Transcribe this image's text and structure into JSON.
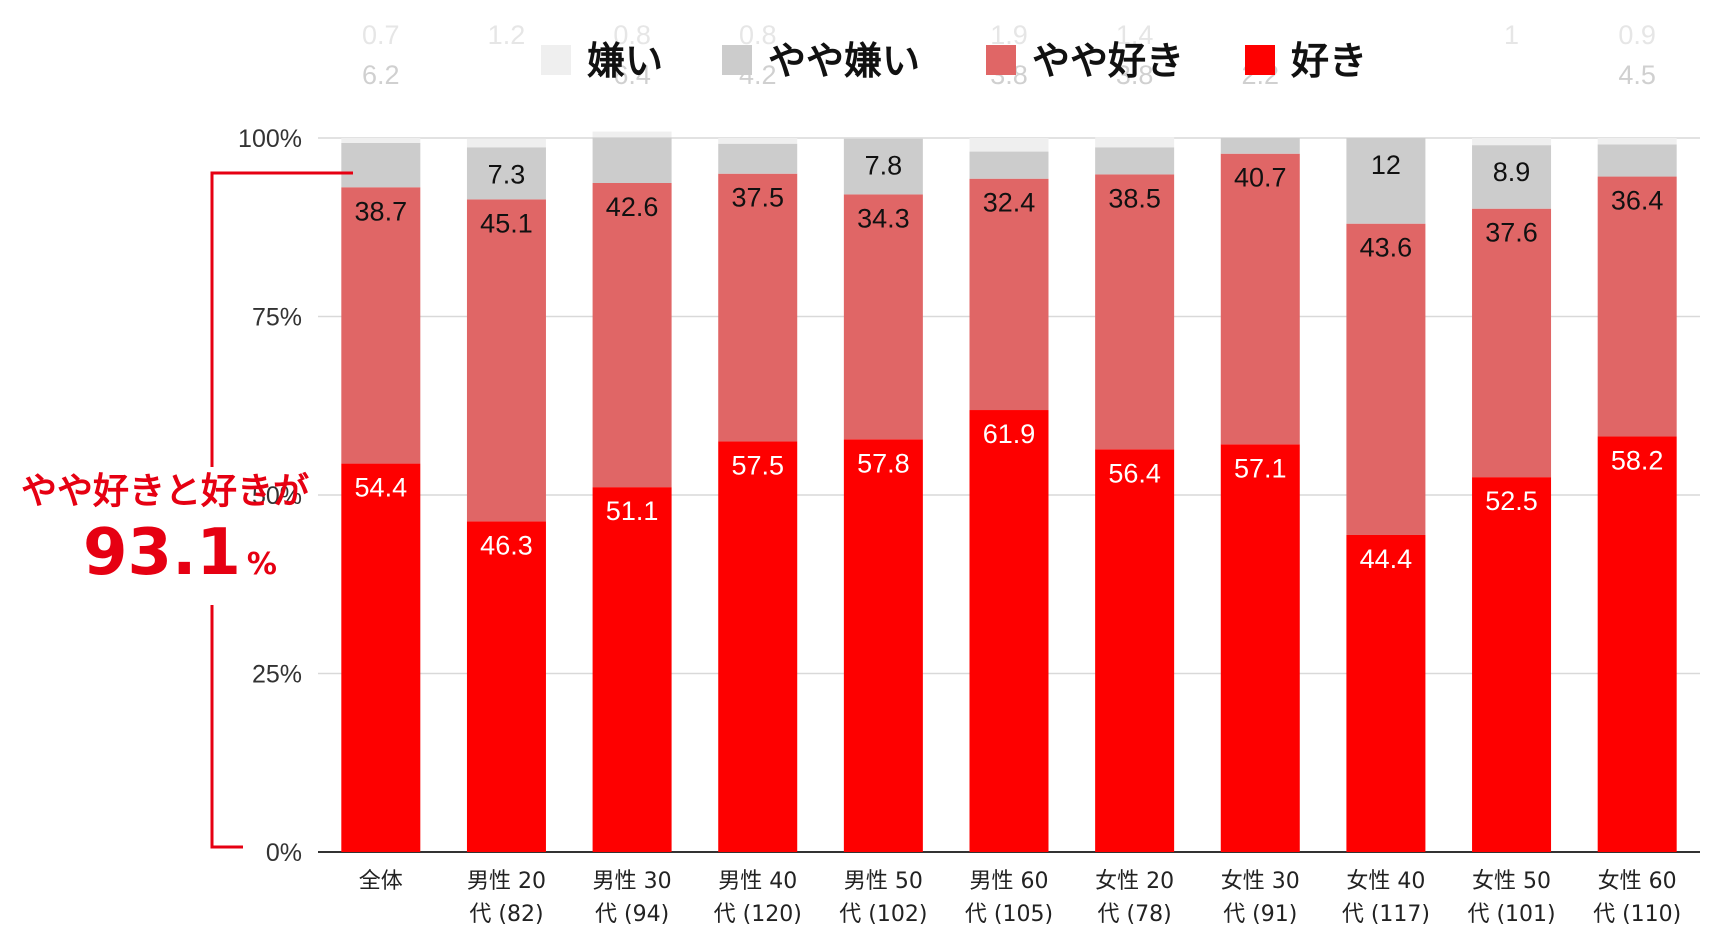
{
  "chart_data": {
    "type": "bar",
    "stacked": true,
    "categories": [
      "全体",
      "男性 20 代 (82)",
      "男性 30 代 (94)",
      "男性 40 代 (120)",
      "男性 50 代 (102)",
      "男性 60 代 (105)",
      "女性 20 代 (78)",
      "女性 30 代 (91)",
      "女性 40 代 (117)",
      "女性 50 代 (101)",
      "女性 60 代 (110)"
    ],
    "category_lines": [
      [
        "全体"
      ],
      [
        "男性 20",
        "代 (82)"
      ],
      [
        "男性 30",
        "代 (94)"
      ],
      [
        "男性 40",
        "代 (120)"
      ],
      [
        "男性 50",
        "代 (102)"
      ],
      [
        "男性 60",
        "代 (105)"
      ],
      [
        "女性 20",
        "代 (78)"
      ],
      [
        "女性 30",
        "代 (91)"
      ],
      [
        "女性 40",
        "代 (117)"
      ],
      [
        "女性 50",
        "代 (101)"
      ],
      [
        "女性 60",
        "代 (110)"
      ]
    ],
    "series": [
      {
        "name": "好き",
        "color": "#fe0000",
        "label_color": "#ffffff",
        "values": [
          54.4,
          46.3,
          51.1,
          57.5,
          57.8,
          61.9,
          56.4,
          57.1,
          44.4,
          52.5,
          58.2
        ]
      },
      {
        "name": "やや好き",
        "color": "#e06666",
        "label_color": "#111111",
        "values": [
          38.7,
          45.1,
          42.6,
          37.5,
          34.3,
          32.4,
          38.5,
          40.7,
          43.6,
          37.6,
          36.4
        ]
      },
      {
        "name": "やや嫌い",
        "color": "#cccccc",
        "label_color": "#111111",
        "values": [
          6.2,
          7.3,
          6.4,
          4.2,
          7.8,
          3.8,
          3.8,
          2.2,
          12,
          8.9,
          4.5
        ]
      },
      {
        "name": "嫌い",
        "color": "#efefef",
        "label_color": "#d6d6d6",
        "values": [
          0.7,
          1.2,
          0.8,
          0.8,
          0.0,
          1.9,
          1.4,
          0.0,
          0.0,
          1,
          0.9
        ]
      }
    ],
    "value_labels": [
      [
        "54.4",
        "46.3",
        "51.1",
        "57.5",
        "57.8",
        "61.9",
        "56.4",
        "57.1",
        "44.4",
        "52.5",
        "58.2"
      ],
      [
        "38.7",
        "45.1",
        "42.6",
        "37.5",
        "34.3",
        "32.4",
        "38.5",
        "40.7",
        "43.6",
        "37.6",
        "36.4"
      ],
      [
        "6.2",
        "7.3",
        "6.4",
        "4.2",
        "7.8",
        "3.8",
        "3.8",
        "2.2",
        "12",
        "8.9",
        "4.5"
      ],
      [
        "0.7",
        "1.2",
        "0.8",
        "0.8",
        "",
        "1.9",
        "1.4",
        "",
        "",
        "1",
        "0.9"
      ]
    ],
    "inside_label_series": [
      0,
      1
    ],
    "inside_label_categories_series2": [
      1,
      4,
      8,
      9
    ],
    "yticks": [
      "0%",
      "25%",
      "50%",
      "75%",
      "100%"
    ],
    "ytick_values": [
      0,
      25,
      50,
      75,
      100
    ],
    "ylim": [
      0,
      100
    ],
    "grid": true,
    "legend": [
      "嫌い",
      "やや嫌い",
      "やや好き",
      "好き"
    ],
    "legend_placement": "top",
    "title": "",
    "xlabel": "",
    "ylabel": ""
  },
  "annotation": {
    "line1": "やや好きと好きが",
    "value": "93.1",
    "unit": "%",
    "color": "#e60012"
  }
}
